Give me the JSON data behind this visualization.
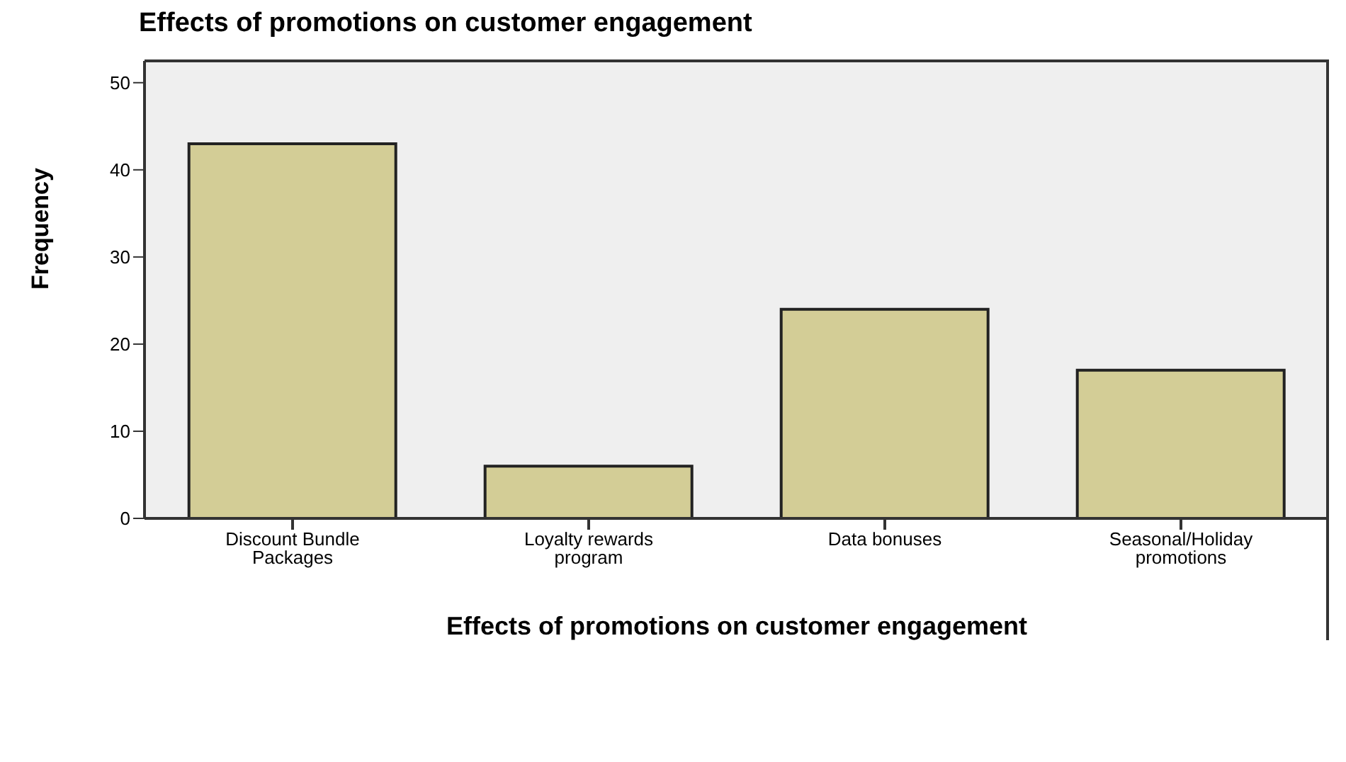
{
  "chart_data": {
    "type": "bar",
    "title": "Effects of promotions on customer engagement",
    "xlabel": "Effects of promotions on customer engagement",
    "ylabel": "Frequency",
    "categories": [
      "Discount Bundle Packages",
      "Loyalty rewards program",
      "Data bonuses",
      "Seasonal/Holiday promotions"
    ],
    "values": [
      43,
      6,
      24,
      17
    ],
    "color": "#d3cd96",
    "ylim": [
      0,
      52.5
    ],
    "yticks": [
      0,
      10,
      20,
      30,
      40,
      50
    ],
    "grid": false
  }
}
